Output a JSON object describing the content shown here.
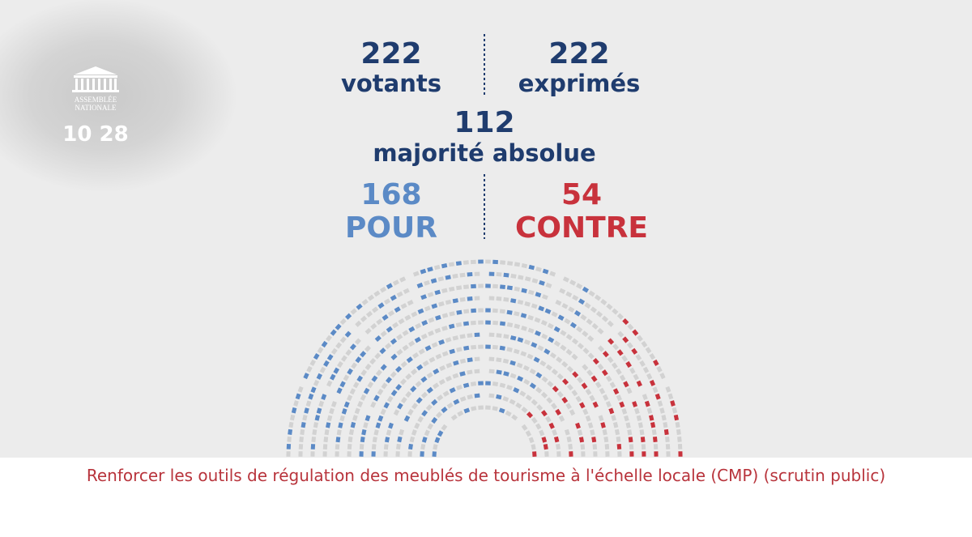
{
  "logo": {
    "line1": "ASSEMBLÉE",
    "line2": "NATIONALE",
    "time": "10 28"
  },
  "votants": {
    "value": 222,
    "label": "votants"
  },
  "exprimes": {
    "value": 222,
    "label": "exprimés"
  },
  "majorite": {
    "value": 112,
    "label": "majorité absolue"
  },
  "pour": {
    "value": 168,
    "label": "POUR"
  },
  "contre": {
    "value": 54,
    "label": "CONTRE"
  },
  "caption": "Renforcer les outils de régulation des meublés de tourisme à l'échelle locale (CMP) (scrutin public)"
}
